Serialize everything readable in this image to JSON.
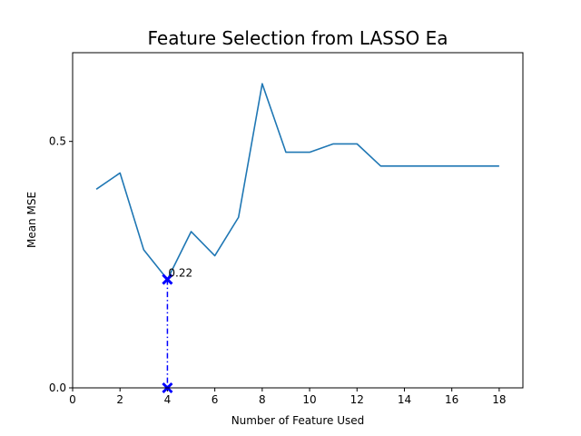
{
  "chart_data": {
    "type": "line",
    "title": "Feature Selection from LASSO Ea",
    "xlabel": "Number of Feature Used",
    "ylabel": "Mean MSE",
    "xlim": [
      0,
      19
    ],
    "ylim": [
      0,
      0.68
    ],
    "xticks": [
      0,
      2,
      4,
      6,
      8,
      10,
      12,
      14,
      16,
      18
    ],
    "yticks": [
      0.0,
      0.5
    ],
    "ytick_labels": [
      "0.0",
      "0.5"
    ],
    "grid": false,
    "series": [
      {
        "x": [
          1,
          2,
          3,
          4,
          5,
          6,
          7,
          8,
          9,
          10,
          11,
          12,
          13,
          14,
          15,
          16,
          17,
          18
        ],
        "values": [
          0.403,
          0.436,
          0.28,
          0.22,
          0.317,
          0.268,
          0.346,
          0.617,
          0.478,
          0.478,
          0.495,
          0.495,
          0.45,
          0.45,
          0.45,
          0.45,
          0.45,
          0.45
        ],
        "color": "#1f77b4"
      }
    ],
    "annotations": [
      {
        "x": 4,
        "y": 0.22,
        "text": "0.22",
        "marker": "x",
        "color": "#0000ff",
        "line_style": "dash-dot",
        "drop_to": 0
      }
    ]
  }
}
